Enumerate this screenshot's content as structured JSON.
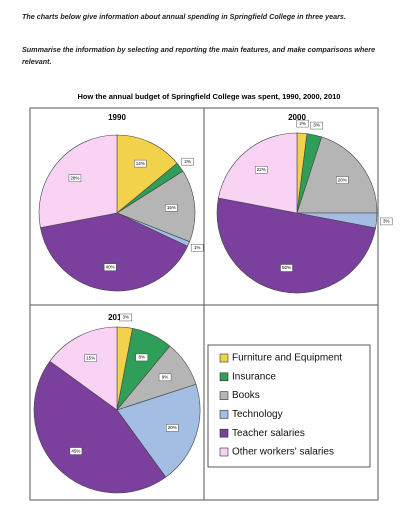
{
  "instructions": [
    "The charts below give information about annual spending in Springfield College in three years.",
    "Summarise the information by selecting and reporting the main features, and make comparisons where relevant."
  ],
  "figure_title": "How the annual budget of Springfield College was spent, 1990, 2000, 2010",
  "legend": {
    "labels": [
      "Furniture and Equipment",
      "Insurance",
      "Books",
      "Technology",
      "Teacher salaries",
      "Other workers' salaries"
    ],
    "colors": [
      "#f3d24b",
      "#2e9e58",
      "#b5b5b5",
      "#a3bde3",
      "#7b3f9e",
      "#f8d3f3"
    ]
  },
  "chart_data": [
    {
      "type": "pie",
      "title": "1990",
      "values": [
        14,
        2,
        15,
        1,
        40,
        28
      ],
      "value_labels": [
        "14%",
        "2%",
        "15%",
        "1%",
        "40%",
        "28%"
      ]
    },
    {
      "type": "pie",
      "title": "2000",
      "values": [
        2,
        3,
        20,
        3,
        50,
        22
      ],
      "value_labels": [
        "2%",
        "3%",
        "20%",
        "3%",
        "50%",
        "22%"
      ]
    },
    {
      "type": "pie",
      "title": "2010",
      "values": [
        3,
        8,
        9,
        20,
        45,
        15
      ],
      "value_labels": [
        "3%",
        "8%",
        "9%",
        "20%",
        "45%",
        "15%"
      ]
    }
  ]
}
